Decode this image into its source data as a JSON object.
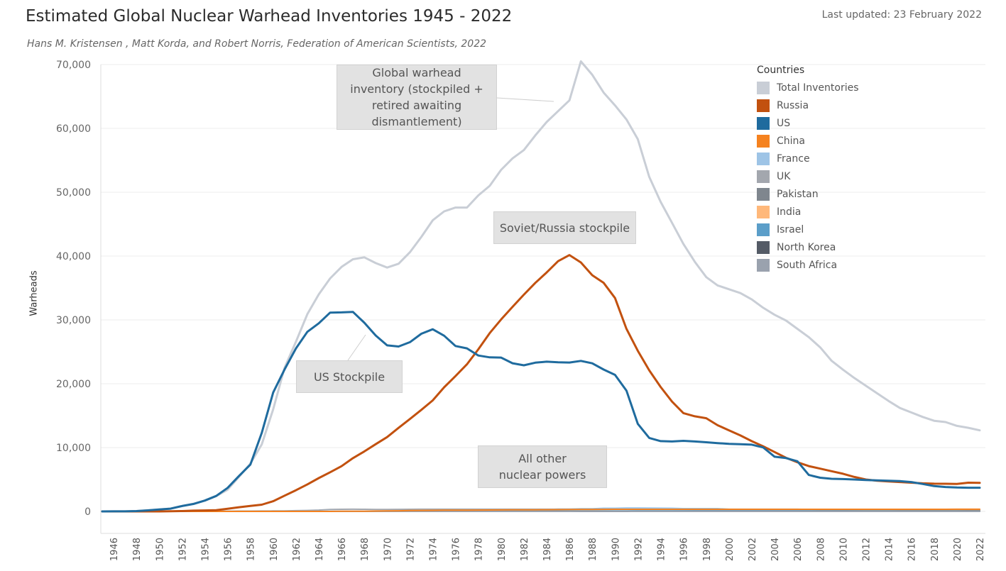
{
  "header": {
    "title": "Estimated Global Nuclear Warhead Inventories 1945 - 2022",
    "subtitle": "Hans M. Kristensen , Matt Korda, and Robert Norris, Federation of American Scientists, 2022",
    "last_updated": "Last updated: 23 February 2022"
  },
  "legend": {
    "title": "Countries",
    "items": [
      {
        "label": "Total Inventories",
        "color": "#c9ced6"
      },
      {
        "label": "Russia",
        "color": "#c2510f"
      },
      {
        "label": "US",
        "color": "#1f6b9e"
      },
      {
        "label": "China",
        "color": "#f5821f"
      },
      {
        "label": "France",
        "color": "#9ec4e6"
      },
      {
        "label": "UK",
        "color": "#a3a7ae"
      },
      {
        "label": "Pakistan",
        "color": "#7f868e"
      },
      {
        "label": "India",
        "color": "#ffb87a"
      },
      {
        "label": "Israel",
        "color": "#5b9ec9"
      },
      {
        "label": "North Korea",
        "color": "#545b66"
      },
      {
        "label": "South Africa",
        "color": "#9aa2ae"
      }
    ]
  },
  "callouts": {
    "total": "Global warhead inventory (stockpiled + retired awaiting dismantlement)",
    "russia": "Soviet/Russia stockpile",
    "us": "US Stockpile",
    "other": "All other nuclear powers"
  },
  "chart_data": {
    "type": "line",
    "title": "Estimated Global Nuclear Warhead Inventories 1945 - 2022",
    "ylabel": "Warheads",
    "xlabel": "",
    "xlim": [
      1945,
      2022
    ],
    "ylim": [
      0,
      70000
    ],
    "yticks": [
      0,
      10000,
      20000,
      30000,
      40000,
      50000,
      60000,
      70000
    ],
    "ytick_labels": [
      "0",
      "10,000",
      "20,000",
      "30,000",
      "40,000",
      "50,000",
      "60,000",
      "70,000"
    ],
    "xticks": [
      1946,
      1948,
      1950,
      1952,
      1954,
      1956,
      1958,
      1960,
      1962,
      1964,
      1966,
      1968,
      1970,
      1972,
      1974,
      1976,
      1978,
      1980,
      1982,
      1984,
      1986,
      1988,
      1990,
      1992,
      1994,
      1996,
      1998,
      2000,
      2002,
      2004,
      2006,
      2008,
      2010,
      2012,
      2014,
      2016,
      2018,
      2020,
      2022
    ],
    "grid": "horizontal",
    "legend_position": "right",
    "x": [
      1945,
      1946,
      1947,
      1948,
      1949,
      1950,
      1951,
      1952,
      1953,
      1954,
      1955,
      1956,
      1957,
      1958,
      1959,
      1960,
      1961,
      1962,
      1963,
      1964,
      1965,
      1966,
      1967,
      1968,
      1969,
      1970,
      1971,
      1972,
      1973,
      1974,
      1975,
      1976,
      1977,
      1978,
      1979,
      1980,
      1981,
      1982,
      1983,
      1984,
      1985,
      1986,
      1987,
      1988,
      1989,
      1990,
      1991,
      1992,
      1993,
      1994,
      1995,
      1996,
      1997,
      1998,
      1999,
      2000,
      2001,
      2002,
      2003,
      2004,
      2005,
      2006,
      2007,
      2008,
      2009,
      2010,
      2011,
      2012,
      2013,
      2014,
      2015,
      2016,
      2017,
      2018,
      2019,
      2020,
      2021,
      2022
    ],
    "series": [
      {
        "name": "Total Inventories",
        "color": "#c9ced6",
        "width": 3,
        "values": [
          2,
          9,
          13,
          50,
          170,
          305,
          440,
          840,
          1200,
          1700,
          2400,
          3400,
          5400,
          7500,
          10500,
          16000,
          22500,
          26600,
          30900,
          34000,
          36500,
          38300,
          39500,
          39800,
          38900,
          38200,
          38800,
          40600,
          43000,
          45600,
          47000,
          47600,
          47600,
          49500,
          51000,
          53500,
          55300,
          56600,
          58900,
          61000,
          62700,
          64400,
          70500,
          68400,
          65600,
          63600,
          61400,
          58300,
          52400,
          48500,
          45200,
          41900,
          39100,
          36700,
          35400,
          34800,
          34200,
          33200,
          31900,
          30800,
          29900,
          28600,
          27300,
          25700,
          23600,
          22200,
          20900,
          19700,
          18500,
          17300,
          16200,
          15500,
          14800,
          14200,
          14000,
          13400,
          13100,
          12700
        ]
      },
      {
        "name": "Russia",
        "color": "#c2510f",
        "width": 3,
        "values": [
          0,
          0,
          0,
          0,
          1,
          5,
          25,
          50,
          120,
          150,
          200,
          426,
          660,
          869,
          1060,
          1605,
          2471,
          3322,
          4238,
          5221,
          6129,
          7089,
          8339,
          9399,
          10538,
          11643,
          13092,
          14478,
          15915,
          17385,
          19443,
          21205,
          23044,
          25393,
          27935,
          30062,
          32049,
          33952,
          35804,
          37431,
          39197,
          40159,
          39000,
          37000,
          35800,
          33417,
          28595,
          25155,
          22101,
          19500,
          17200,
          15400,
          14900,
          14600,
          13500,
          12700,
          11900,
          11000,
          10200,
          9300,
          8400,
          7700,
          7100,
          6700,
          6300,
          5900,
          5400,
          5000,
          4800,
          4700,
          4600,
          4500,
          4400,
          4350,
          4330,
          4310,
          4495,
          4477
        ]
      },
      {
        "name": "US",
        "color": "#1f6b9e",
        "width": 3,
        "values": [
          2,
          9,
          13,
          50,
          170,
          299,
          438,
          841,
          1169,
          1703,
          2422,
          3692,
          5543,
          7345,
          12298,
          18638,
          22229,
          25540,
          28133,
          29463,
          31139,
          31175,
          31255,
          29561,
          27552,
          26008,
          25830,
          26516,
          27835,
          28537,
          27519,
          25914,
          25542,
          24418,
          24138,
          24104,
          23208,
          22886,
          23305,
          23459,
          23368,
          23317,
          23575,
          23205,
          22217,
          21392,
          18920,
          13708,
          11511,
          11011,
          10953,
          11059,
          10951,
          10828,
          10701,
          10577,
          10526,
          10457,
          10027,
          8570,
          8360,
          7853,
          5709,
          5273,
          5113,
          5066,
          5002,
          4920,
          4856,
          4800,
          4750,
          4600,
          4300,
          3970,
          3822,
          3750,
          3708,
          3708
        ]
      },
      {
        "name": "China",
        "color": "#f5821f",
        "width": 2,
        "values": [
          0,
          0,
          0,
          0,
          0,
          0,
          0,
          0,
          0,
          0,
          0,
          0,
          0,
          0,
          0,
          0,
          0,
          0,
          0,
          0,
          5,
          20,
          25,
          35,
          50,
          75,
          100,
          130,
          150,
          170,
          185,
          190,
          200,
          210,
          220,
          230,
          240,
          250,
          260,
          270,
          280,
          290,
          300,
          310,
          320,
          330,
          330,
          330,
          330,
          330,
          330,
          330,
          330,
          330,
          330,
          330,
          330,
          330,
          330,
          330,
          330,
          330,
          330,
          330,
          330,
          330,
          330,
          330,
          330,
          330,
          330,
          330,
          330,
          330,
          330,
          350,
          350,
          350
        ]
      },
      {
        "name": "France",
        "color": "#9ec4e6",
        "width": 2,
        "values": [
          0,
          0,
          0,
          0,
          0,
          0,
          0,
          0,
          0,
          0,
          0,
          0,
          0,
          0,
          0,
          0,
          0,
          0,
          0,
          4,
          32,
          36,
          36,
          36,
          36,
          36,
          45,
          70,
          116,
          145,
          188,
          212,
          228,
          235,
          280,
          280,
          275,
          275,
          280,
          280,
          360,
          355,
          420,
          410,
          505,
          505,
          540,
          540,
          525,
          510,
          500,
          450,
          450,
          450,
          450,
          350,
          350,
          348,
          348,
          348,
          348,
          350,
          300,
          300,
          300,
          300,
          300,
          300,
          300,
          300,
          300,
          300,
          300,
          300,
          300,
          290,
          290,
          290
        ]
      },
      {
        "name": "UK",
        "color": "#a3a7ae",
        "width": 2,
        "values": [
          0,
          0,
          0,
          0,
          0,
          0,
          0,
          0,
          10,
          20,
          30,
          40,
          50,
          60,
          70,
          80,
          90,
          120,
          150,
          210,
          310,
          330,
          350,
          330,
          300,
          310,
          320,
          330,
          350,
          350,
          350,
          350,
          350,
          350,
          350,
          350,
          350,
          350,
          350,
          350,
          350,
          350,
          350,
          350,
          350,
          350,
          330,
          300,
          300,
          300,
          300,
          290,
          280,
          270,
          260,
          250,
          240,
          230,
          225,
          225,
          225,
          225,
          225,
          225,
          225,
          225,
          225,
          225,
          225,
          225,
          215,
          215,
          215,
          215,
          215,
          225,
          225,
          225
        ]
      },
      {
        "name": "Pakistan",
        "color": "#7f868e",
        "width": 2,
        "values": [
          0,
          0,
          0,
          0,
          0,
          0,
          0,
          0,
          0,
          0,
          0,
          0,
          0,
          0,
          0,
          0,
          0,
          0,
          0,
          0,
          0,
          0,
          0,
          0,
          0,
          0,
          0,
          0,
          0,
          0,
          0,
          0,
          0,
          0,
          0,
          0,
          0,
          0,
          0,
          0,
          0,
          0,
          0,
          0,
          0,
          0,
          0,
          0,
          0,
          0,
          0,
          0,
          0,
          5,
          10,
          15,
          20,
          25,
          30,
          40,
          50,
          60,
          70,
          80,
          90,
          100,
          110,
          120,
          130,
          140,
          150,
          155,
          160,
          165,
          165,
          165,
          165,
          165
        ]
      },
      {
        "name": "India",
        "color": "#ffb87a",
        "width": 2,
        "values": [
          0,
          0,
          0,
          0,
          0,
          0,
          0,
          0,
          0,
          0,
          0,
          0,
          0,
          0,
          0,
          0,
          0,
          0,
          0,
          0,
          0,
          0,
          0,
          0,
          0,
          0,
          0,
          0,
          0,
          0,
          0,
          0,
          0,
          0,
          0,
          0,
          0,
          0,
          0,
          0,
          0,
          0,
          0,
          0,
          0,
          0,
          0,
          0,
          0,
          0,
          0,
          0,
          0,
          5,
          10,
          15,
          20,
          25,
          30,
          40,
          50,
          60,
          70,
          75,
          80,
          90,
          100,
          110,
          120,
          120,
          130,
          130,
          130,
          140,
          150,
          150,
          160,
          160
        ]
      },
      {
        "name": "Israel",
        "color": "#5b9ec9",
        "width": 2,
        "values": [
          0,
          0,
          0,
          0,
          0,
          0,
          0,
          0,
          0,
          0,
          0,
          0,
          0,
          0,
          0,
          0,
          0,
          0,
          0,
          0,
          0,
          0,
          2,
          5,
          10,
          15,
          20,
          25,
          30,
          35,
          40,
          45,
          50,
          50,
          55,
          60,
          60,
          60,
          65,
          70,
          70,
          75,
          75,
          80,
          80,
          80,
          80,
          80,
          80,
          80,
          80,
          80,
          80,
          80,
          80,
          80,
          80,
          80,
          80,
          80,
          80,
          80,
          80,
          80,
          80,
          80,
          80,
          80,
          80,
          80,
          80,
          80,
          80,
          80,
          80,
          90,
          90,
          90
        ]
      },
      {
        "name": "North Korea",
        "color": "#545b66",
        "width": 2,
        "values": [
          0,
          0,
          0,
          0,
          0,
          0,
          0,
          0,
          0,
          0,
          0,
          0,
          0,
          0,
          0,
          0,
          0,
          0,
          0,
          0,
          0,
          0,
          0,
          0,
          0,
          0,
          0,
          0,
          0,
          0,
          0,
          0,
          0,
          0,
          0,
          0,
          0,
          0,
          0,
          0,
          0,
          0,
          0,
          0,
          0,
          0,
          0,
          0,
          0,
          0,
          0,
          0,
          0,
          0,
          0,
          0,
          0,
          0,
          0,
          0,
          0,
          2,
          4,
          6,
          8,
          8,
          10,
          12,
          14,
          16,
          18,
          20,
          25,
          30,
          30,
          35,
          40,
          40
        ]
      },
      {
        "name": "South Africa",
        "color": "#9aa2ae",
        "width": 2,
        "values": [
          0,
          0,
          0,
          0,
          0,
          0,
          0,
          0,
          0,
          0,
          0,
          0,
          0,
          0,
          0,
          0,
          0,
          0,
          0,
          0,
          0,
          0,
          0,
          0,
          0,
          0,
          0,
          0,
          0,
          0,
          0,
          0,
          0,
          0,
          0,
          0,
          0,
          1,
          2,
          3,
          4,
          5,
          6,
          6,
          6,
          6,
          6,
          4,
          2,
          0,
          0,
          0,
          0,
          0,
          0,
          0,
          0,
          0,
          0,
          0,
          0,
          0,
          0,
          0,
          0,
          0,
          0,
          0,
          0,
          0,
          0,
          0,
          0,
          0,
          0,
          0,
          0,
          0
        ]
      }
    ]
  }
}
